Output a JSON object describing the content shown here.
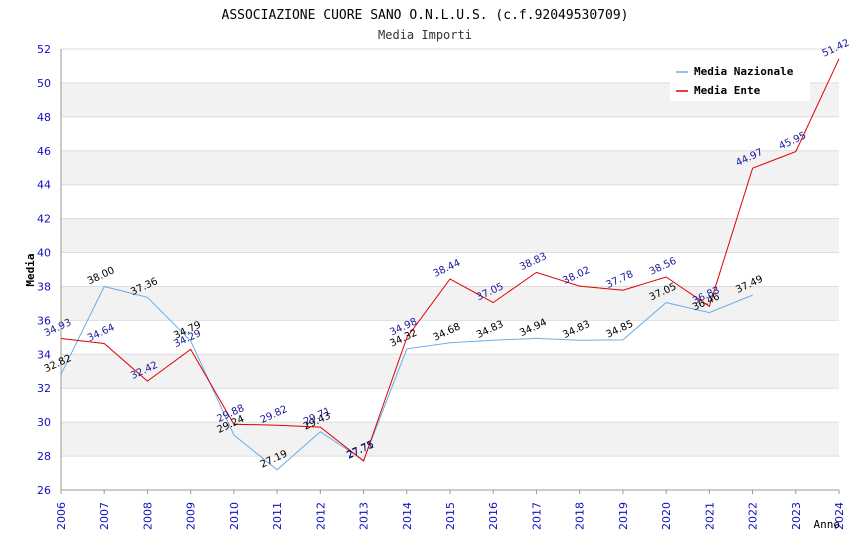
{
  "chart_data": {
    "type": "line",
    "title": "ASSOCIAZIONE CUORE SANO O.N.L.U.S. (c.f.92049530709)",
    "subtitle": "Media Importi",
    "xlabel": "Anno",
    "ylabel": "Media",
    "ylim": [
      26,
      52
    ],
    "yticks": [
      "26",
      "28",
      "30",
      "32",
      "34",
      "36",
      "38",
      "40",
      "42",
      "44",
      "46",
      "48",
      "50",
      "52"
    ],
    "categories": [
      "2006",
      "2007",
      "2008",
      "2009",
      "2010",
      "2011",
      "2012",
      "2013",
      "2014",
      "2015",
      "2016",
      "2017",
      "2018",
      "2019",
      "2020",
      "2021",
      "2022",
      "2023",
      "2024"
    ],
    "legend_position": "top-right",
    "series": [
      {
        "name": "Media Nazionale",
        "color": "#6aaee8",
        "values": [
          32.82,
          38.0,
          37.36,
          34.79,
          29.24,
          27.19,
          29.43,
          27.75,
          34.32,
          34.68,
          34.83,
          34.94,
          34.83,
          34.85,
          37.05,
          36.46,
          37.49,
          null,
          null
        ],
        "labels": [
          "32.82",
          "38.00",
          "37.36",
          "34.79",
          "29.24",
          "27.19",
          "29.43",
          "27.75",
          "34.32",
          "34.68",
          "34.83",
          "34.94",
          "34.83",
          "34.85",
          "37.05",
          "36.46",
          "37.49",
          "",
          ""
        ]
      },
      {
        "name": "Media Ente",
        "color": "#e00000",
        "values": [
          34.93,
          34.64,
          32.42,
          34.29,
          29.88,
          29.82,
          29.71,
          27.71,
          34.98,
          38.44,
          37.05,
          38.83,
          38.02,
          37.78,
          38.56,
          36.83,
          44.97,
          45.95,
          51.42
        ],
        "labels": [
          "34.93",
          "34.64",
          "32.42",
          "34.29",
          "29.88",
          "29.82",
          "29.71",
          "27.71",
          "34.98",
          "38.44",
          "37.05",
          "38.83",
          "38.02",
          "37.78",
          "38.56",
          "36.83",
          "44.97",
          "45.95",
          "51.42"
        ]
      }
    ]
  }
}
